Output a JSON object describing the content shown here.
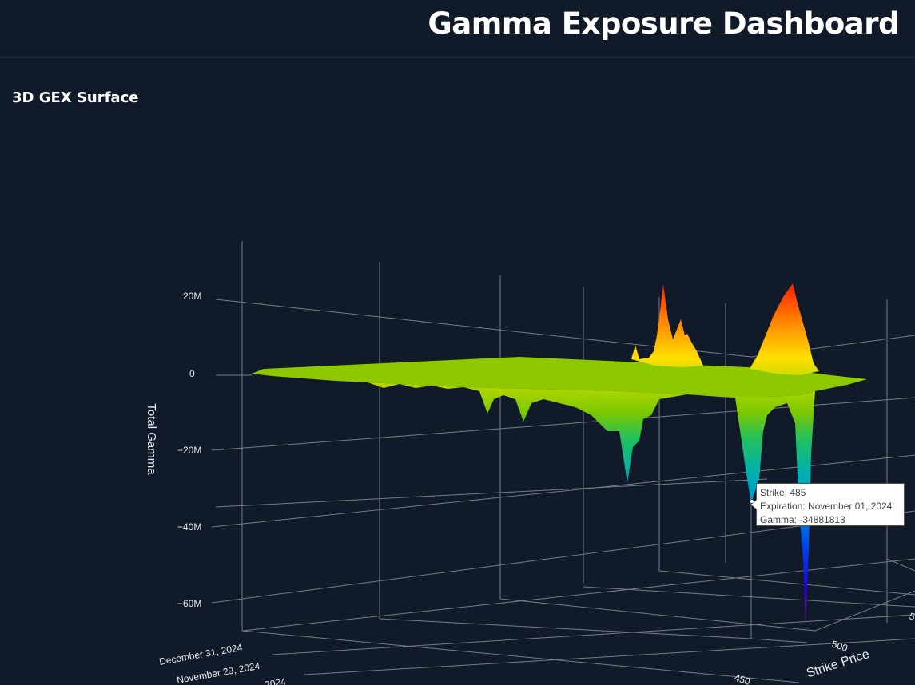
{
  "header": {
    "title": "Gamma Exposure Dashboard"
  },
  "panel": {
    "title": "3D GEX Surface"
  },
  "tooltip": {
    "strike": "Strike: 485",
    "expiration": "Expiration: November 01, 2024",
    "gamma": "Gamma: -34881813"
  },
  "colors": {
    "background": "#101a28",
    "surface_top": "#ff2a00",
    "surface_mid": "#9acd00",
    "surface_low": "#00a0c8",
    "surface_min": "#1400ff"
  },
  "chart_data": {
    "type": "surface3d",
    "zlabel": "Total Gamma",
    "xlabel": "Strike Price",
    "z_ticks": [
      "20M",
      "0",
      "−20M",
      "−40M",
      "−60M"
    ],
    "x_ticks": [
      "450",
      "500",
      "5"
    ],
    "y_ticks": [
      "December 31, 2024",
      "November 29, 2024",
      "2024"
    ],
    "highlight": {
      "strike": 485,
      "expiration": "November 01, 2024",
      "gamma": -34881813
    },
    "colorscale": "jet"
  }
}
